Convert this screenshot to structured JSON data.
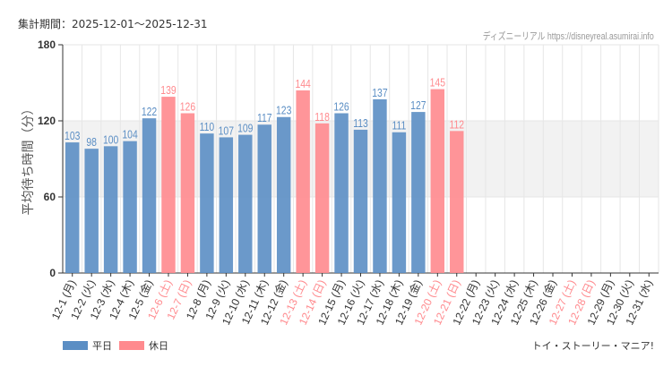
{
  "header": {
    "period": "集計期間：2025-12-01～2025-12-31",
    "credit": "ディズニーリアル https://disneyreal.asumirai.info"
  },
  "footer": {
    "site": "トイ・ストーリー・マニア!"
  },
  "colors": {
    "weekday": "#5b8ec4",
    "holiday": "#ff8a8e",
    "band": "#f2f2f2"
  },
  "chart_data": {
    "type": "bar",
    "ylabel": "平均待ち時間（分）",
    "ylim": [
      0,
      180
    ],
    "yticks": [
      0,
      60,
      120,
      180
    ],
    "band": [
      60,
      120
    ],
    "grid": true,
    "legend_position": "bottom-left",
    "series": [
      {
        "name": "平日",
        "color": "#5b8ec4"
      },
      {
        "name": "休日",
        "color": "#ff8a8e"
      }
    ],
    "categories": [
      "12-1 (月)",
      "12-2 (火)",
      "12-3 (水)",
      "12-4 (木)",
      "12-5 (金)",
      "12-6 (土)",
      "12-7 (日)",
      "12-8 (月)",
      "12-9 (火)",
      "12-10 (水)",
      "12-11 (木)",
      "12-12 (金)",
      "12-13 (土)",
      "12-14 (日)",
      "12-15 (月)",
      "12-16 (火)",
      "12-17 (水)",
      "12-18 (木)",
      "12-19 (金)",
      "12-20 (土)",
      "12-21 (日)",
      "12-22 (月)",
      "12-23 (火)",
      "12-24 (水)",
      "12-25 (木)",
      "12-26 (金)",
      "12-27 (土)",
      "12-28 (日)",
      "12-29 (月)",
      "12-30 (火)",
      "12-31 (水)"
    ],
    "holiday": [
      false,
      false,
      false,
      false,
      false,
      true,
      true,
      false,
      false,
      false,
      false,
      false,
      true,
      true,
      false,
      false,
      false,
      false,
      false,
      true,
      true,
      false,
      false,
      false,
      false,
      false,
      true,
      true,
      false,
      false,
      false
    ],
    "values": [
      103,
      98,
      100,
      104,
      122,
      139,
      126,
      110,
      107,
      109,
      117,
      123,
      144,
      118,
      126,
      113,
      137,
      111,
      127,
      145,
      112,
      null,
      null,
      null,
      null,
      null,
      null,
      null,
      null,
      null,
      null
    ]
  }
}
